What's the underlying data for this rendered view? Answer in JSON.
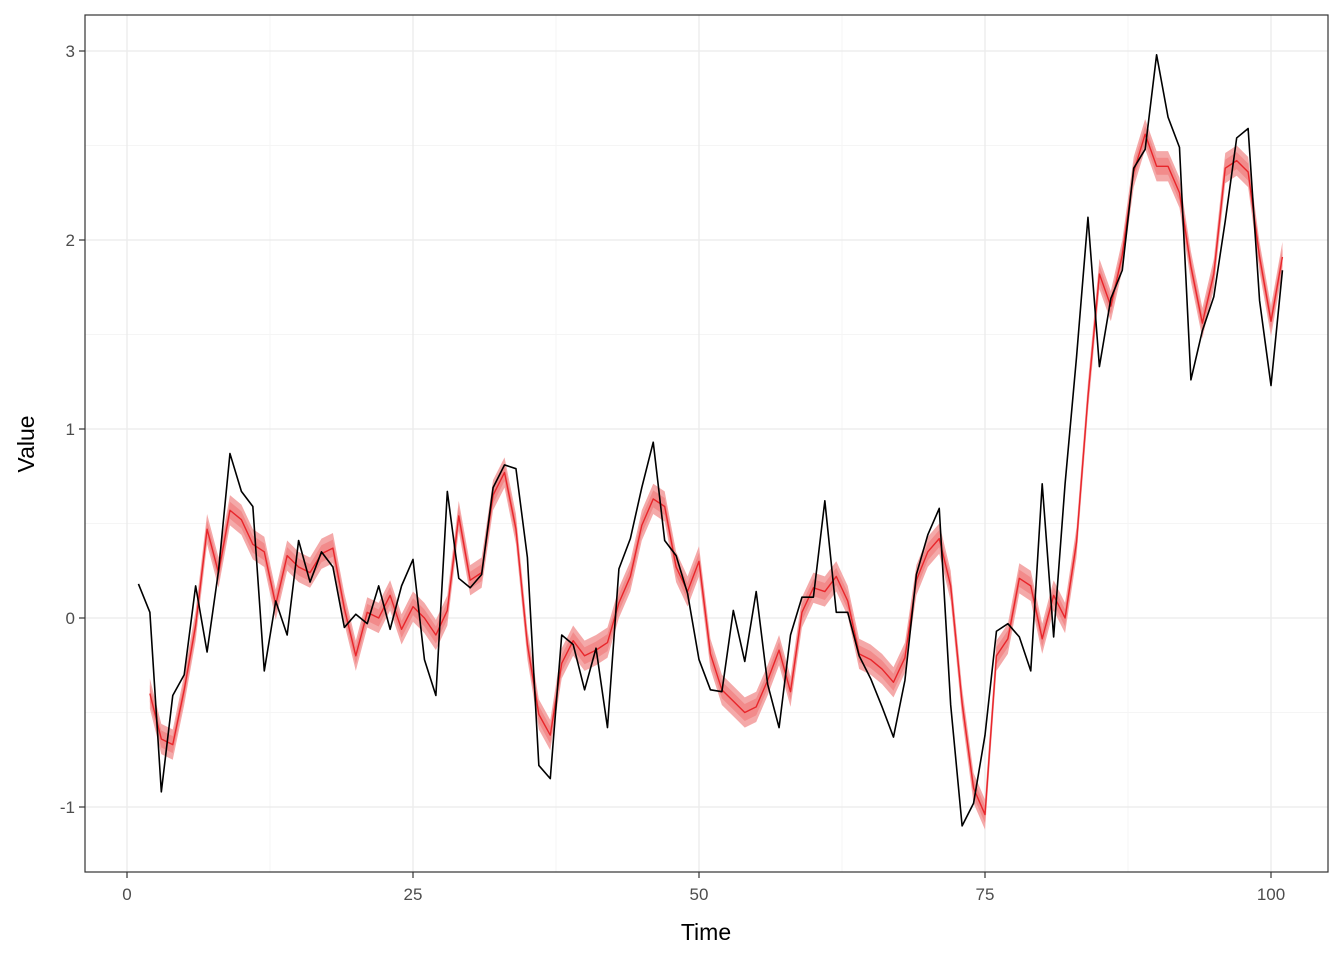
{
  "chart_data": {
    "type": "line",
    "title": "",
    "xlabel": "Time",
    "ylabel": "Value",
    "xlim": [
      -3,
      104.5
    ],
    "ylim": [
      -1.34,
      3.18
    ],
    "x_ticks": [
      0,
      25,
      50,
      75,
      100
    ],
    "x_tick_labels": [
      "0",
      "25",
      "50",
      "75",
      "100"
    ],
    "y_ticks": [
      -1,
      0,
      1,
      2,
      3
    ],
    "y_tick_labels": [
      "-1",
      "0",
      "1",
      "2",
      "3"
    ],
    "grid": true,
    "legend": "none",
    "series": [
      {
        "name": "observed",
        "color": "#000000",
        "x_start": 1,
        "values": [
          0.18,
          0.03,
          -0.92,
          -0.41,
          -0.3,
          0.17,
          -0.18,
          0.25,
          0.87,
          0.67,
          0.59,
          -0.28,
          0.09,
          -0.09,
          0.41,
          0.19,
          0.35,
          0.27,
          -0.05,
          0.02,
          -0.03,
          0.17,
          -0.06,
          0.17,
          0.31,
          -0.22,
          -0.41,
          0.67,
          0.21,
          0.16,
          0.23,
          0.69,
          0.81,
          0.79,
          0.32,
          -0.78,
          -0.85,
          -0.09,
          -0.14,
          -0.38,
          -0.16,
          -0.58,
          0.26,
          0.42,
          0.69,
          0.93,
          0.41,
          0.33,
          0.13,
          -0.22,
          -0.38,
          -0.39,
          0.04,
          -0.23,
          0.14,
          -0.35,
          -0.58,
          -0.09,
          0.11,
          0.11,
          0.62,
          0.03,
          0.03,
          -0.2,
          -0.32,
          -0.47,
          -0.63,
          -0.33,
          0.23,
          0.44,
          0.58,
          -0.46,
          -1.1,
          -0.98,
          -0.62,
          -0.07,
          -0.03,
          -0.1,
          -0.28,
          0.71,
          -0.1,
          0.71,
          1.38,
          2.12,
          1.33,
          1.69,
          1.84,
          2.38,
          2.48,
          2.98,
          2.65,
          2.49,
          1.26,
          1.52,
          1.7,
          2.1,
          2.54,
          2.59,
          1.68,
          1.23,
          1.84
        ]
      },
      {
        "name": "fitted",
        "color": "#e8262b",
        "x_start": 2,
        "values": [
          -0.4,
          -0.64,
          -0.67,
          -0.38,
          -0.04,
          0.47,
          0.24,
          0.57,
          0.52,
          0.39,
          0.35,
          0.07,
          0.33,
          0.27,
          0.24,
          0.34,
          0.37,
          0.05,
          -0.2,
          0.03,
          0.0,
          0.12,
          -0.06,
          0.06,
          0.0,
          -0.09,
          0.04,
          0.54,
          0.2,
          0.24,
          0.65,
          0.77,
          0.47,
          -0.14,
          -0.51,
          -0.62,
          -0.24,
          -0.12,
          -0.2,
          -0.17,
          -0.13,
          0.08,
          0.22,
          0.49,
          0.63,
          0.59,
          0.27,
          0.14,
          0.3,
          -0.19,
          -0.38,
          -0.44,
          -0.5,
          -0.47,
          -0.33,
          -0.17,
          -0.39,
          0.03,
          0.16,
          0.14,
          0.22,
          0.09,
          -0.19,
          -0.22,
          -0.27,
          -0.34,
          -0.21,
          0.2,
          0.35,
          0.42,
          0.17,
          -0.45,
          -0.9,
          -1.04,
          -0.2,
          -0.11,
          0.21,
          0.17,
          -0.11,
          0.12,
          0.0,
          0.4,
          1.17,
          1.82,
          1.65,
          1.92,
          2.36,
          2.56,
          2.39,
          2.39,
          2.25,
          1.86,
          1.56,
          1.82,
          2.38,
          2.42,
          2.36,
          1.91,
          1.57,
          1.91
        ]
      }
    ],
    "bands": [
      {
        "name": "fitted-outer-interval",
        "color": "#f4a9a9",
        "halfwidth": 0.08
      },
      {
        "name": "fitted-inner-interval",
        "color": "#f28b8b",
        "halfwidth": 0.045
      }
    ]
  },
  "panel": {
    "background": "#ffffff",
    "border": "#333333",
    "grid_major": "#ebebeb",
    "grid_minor": "#f5f5f5"
  }
}
